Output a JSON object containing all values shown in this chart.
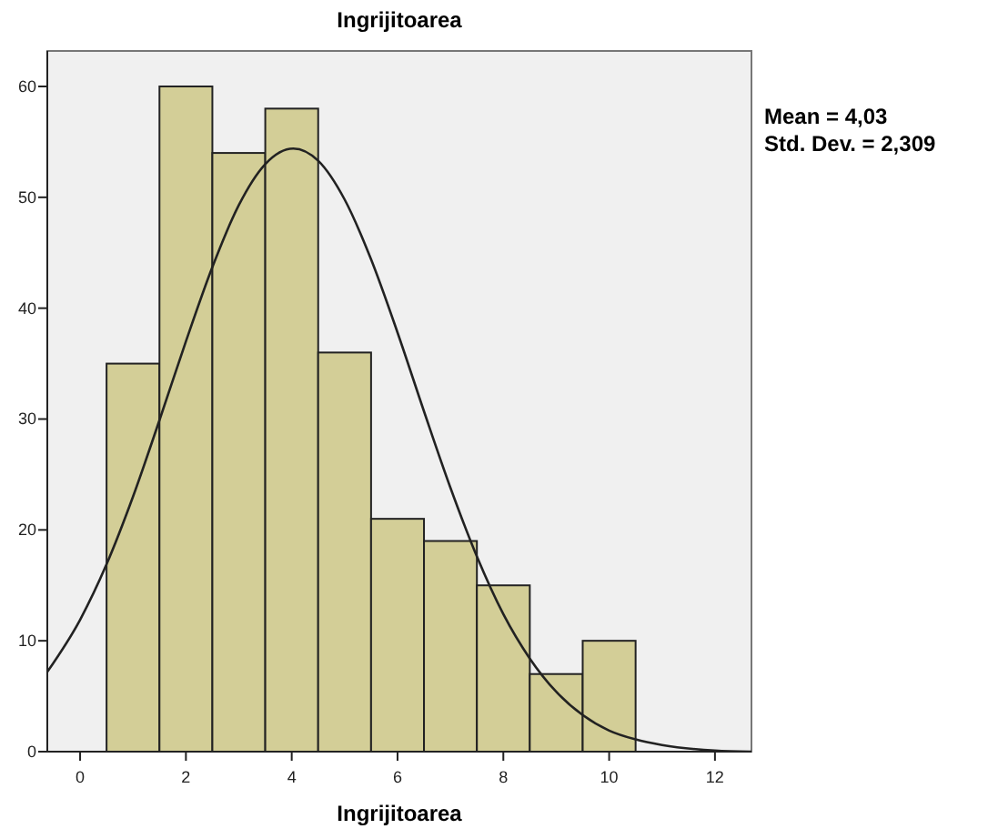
{
  "chart_data": {
    "type": "histogram",
    "title": "Ingrijitoarea",
    "xlabel": "Ingrijitoarea",
    "bins": [
      0.5,
      1.5,
      2.5,
      3.5,
      4.5,
      5.5,
      6.5,
      7.5,
      8.5,
      9.5,
      10.5
    ],
    "values": [
      35,
      60,
      54,
      58,
      36,
      21,
      19,
      15,
      7,
      10
    ],
    "color": "#d3ce97",
    "series": [
      {
        "type": "line",
        "color": "#222222",
        "x": [
          -0.62,
          0,
          0.5,
          1,
          1.5,
          2,
          2.5,
          3,
          3.5,
          4.03,
          4.5,
          5,
          5.5,
          6,
          6.5,
          7,
          7.5,
          8,
          8.5,
          9,
          9.5,
          10,
          10.5,
          11,
          12,
          12.69
        ],
        "values": [
          7.2,
          11.9,
          16.9,
          23,
          29.9,
          37,
          43.7,
          49.3,
          53,
          54.4,
          53.3,
          49.8,
          44.4,
          37.8,
          30.7,
          23.8,
          17.6,
          12.4,
          8.4,
          5.4,
          3.3,
          1.9,
          1.1,
          0.6,
          0.1,
          0
        ]
      }
    ],
    "xlim": [
      -0.62,
      12.69
    ],
    "ylim": [
      0,
      63.2
    ],
    "xticks": [
      0,
      2,
      4,
      6,
      8,
      10,
      12
    ],
    "yticks": [
      0,
      10,
      20,
      30,
      40,
      50,
      60
    ],
    "annotations": [
      "Mean = 4,03",
      "Std. Dev. = 2,309"
    ],
    "grid": false
  }
}
